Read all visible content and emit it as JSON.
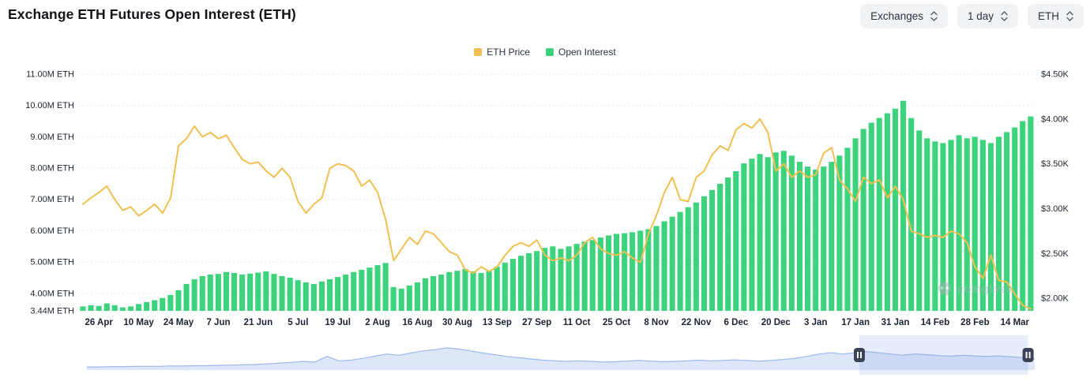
{
  "header": {
    "title": "Exchange ETH Futures Open Interest (ETH)"
  },
  "controls": [
    {
      "label": "Exchanges"
    },
    {
      "label": "1 day"
    },
    {
      "label": "ETH"
    }
  ],
  "legend": [
    {
      "label": "ETH Price",
      "color": "#F0C152"
    },
    {
      "label": "Open Interest",
      "color": "#3DD37C"
    }
  ],
  "watermark": {
    "text": "coinglass"
  },
  "chart_data": {
    "type": "bar",
    "title": "Exchange ETH Futures Open Interest (ETH)",
    "legend_position": "top-center",
    "grid": "horizontal-dotted",
    "x_tick_labels": [
      "26 Apr",
      "10 May",
      "24 May",
      "7 Jun",
      "21 Jun",
      "5 Jul",
      "19 Jul",
      "2 Aug",
      "16 Aug",
      "30 Aug",
      "13 Sep",
      "27 Sep",
      "11 Oct",
      "25 Oct",
      "8 Nov",
      "22 Nov",
      "6 Dec",
      "20 Dec",
      "3 Jan",
      "17 Jan",
      "31 Jan",
      "14 Feb",
      "28 Feb",
      "14 Mar"
    ],
    "left_axis": {
      "labels": [
        "11.00M ETH",
        "10.00M ETH",
        "9.00M ETH",
        "8.00M ETH",
        "7.00M ETH",
        "6.00M ETH",
        "5.00M ETH",
        "4.00M ETH",
        "3.44M ETH"
      ],
      "values": [
        11.0,
        10.0,
        9.0,
        8.0,
        7.0,
        6.0,
        5.0,
        4.0,
        3.44
      ],
      "range": [
        3.44,
        11.0
      ],
      "unit": "M ETH"
    },
    "right_axis": {
      "labels": [
        "$4.50K",
        "$4.00K",
        "$3.50K",
        "$3.00K",
        "$2.50K",
        "$2.00K"
      ],
      "values": [
        4.5,
        4.0,
        3.5,
        3.0,
        2.5,
        2.0
      ],
      "range": [
        1.86,
        4.5
      ],
      "unit": "$K"
    },
    "series": [
      {
        "name": "ETH Price",
        "type": "line",
        "axis": "right",
        "unit": "$K",
        "color": "#F0C152",
        "values": [
          3.05,
          3.12,
          3.18,
          3.25,
          3.1,
          2.98,
          3.02,
          2.92,
          2.98,
          3.05,
          2.95,
          3.12,
          3.7,
          3.78,
          3.92,
          3.8,
          3.85,
          3.78,
          3.82,
          3.68,
          3.55,
          3.5,
          3.52,
          3.42,
          3.35,
          3.45,
          3.35,
          3.08,
          2.95,
          3.05,
          3.12,
          3.45,
          3.5,
          3.48,
          3.42,
          3.25,
          3.32,
          3.18,
          2.88,
          2.42,
          2.55,
          2.68,
          2.6,
          2.75,
          2.72,
          2.62,
          2.52,
          2.48,
          2.32,
          2.28,
          2.35,
          2.3,
          2.35,
          2.48,
          2.58,
          2.62,
          2.58,
          2.65,
          2.48,
          2.42,
          2.45,
          2.42,
          2.48,
          2.62,
          2.68,
          2.55,
          2.5,
          2.48,
          2.52,
          2.45,
          2.4,
          2.72,
          2.92,
          3.18,
          3.35,
          3.1,
          3.08,
          3.35,
          3.42,
          3.6,
          3.7,
          3.65,
          3.88,
          3.95,
          3.9,
          4.0,
          3.85,
          3.42,
          3.5,
          3.35,
          3.42,
          3.35,
          3.38,
          3.62,
          3.68,
          3.32,
          3.22,
          3.08,
          3.35,
          3.28,
          3.32,
          3.12,
          3.25,
          3.1,
          2.75,
          2.72,
          2.68,
          2.7,
          2.68,
          2.75,
          2.72,
          2.62,
          2.35,
          2.22,
          2.48,
          2.2,
          2.18,
          2.05,
          1.92,
          1.88
        ]
      },
      {
        "name": "Open Interest",
        "type": "bar",
        "axis": "left",
        "unit": "M ETH",
        "color": "#3DD37C",
        "values": [
          3.58,
          3.62,
          3.6,
          3.68,
          3.62,
          3.55,
          3.58,
          3.66,
          3.72,
          3.78,
          3.85,
          3.95,
          4.1,
          4.3,
          4.45,
          4.55,
          4.6,
          4.62,
          4.68,
          4.65,
          4.6,
          4.63,
          4.66,
          4.7,
          4.62,
          4.55,
          4.5,
          4.42,
          4.35,
          4.3,
          4.38,
          4.45,
          4.52,
          4.6,
          4.68,
          4.75,
          4.82,
          4.9,
          4.97,
          4.2,
          4.15,
          4.25,
          4.35,
          4.48,
          4.55,
          4.6,
          4.68,
          4.72,
          4.78,
          4.7,
          4.65,
          4.72,
          4.85,
          4.98,
          5.1,
          5.2,
          5.28,
          5.35,
          5.45,
          5.5,
          5.42,
          5.5,
          5.58,
          5.65,
          5.7,
          5.78,
          5.85,
          5.9,
          5.92,
          5.95,
          6.0,
          6.05,
          6.15,
          6.3,
          6.45,
          6.6,
          6.75,
          6.9,
          7.1,
          7.3,
          7.5,
          7.7,
          7.9,
          8.15,
          8.3,
          8.45,
          8.35,
          8.5,
          8.55,
          8.4,
          8.2,
          8.05,
          7.95,
          8.05,
          8.2,
          8.4,
          8.65,
          8.95,
          9.25,
          9.45,
          9.6,
          9.75,
          9.9,
          10.15,
          9.6,
          9.2,
          8.95,
          8.85,
          8.8,
          8.9,
          9.05,
          8.95,
          9.0,
          8.9,
          8.8,
          9.0,
          9.15,
          9.3,
          9.5,
          9.65
        ]
      }
    ],
    "navigator": {
      "selection": [
        0.815,
        0.993
      ],
      "values": [
        0.1,
        0.1,
        0.11,
        0.11,
        0.12,
        0.12,
        0.12,
        0.13,
        0.13,
        0.14,
        0.14,
        0.15,
        0.16,
        0.17,
        0.18,
        0.2,
        0.22,
        0.25,
        0.28,
        0.26,
        0.44,
        0.3,
        0.32,
        0.38,
        0.45,
        0.52,
        0.48,
        0.55,
        0.62,
        0.66,
        0.72,
        0.68,
        0.62,
        0.55,
        0.5,
        0.44,
        0.4,
        0.36,
        0.32,
        0.3,
        0.28,
        0.3,
        0.28,
        0.26,
        0.27,
        0.29,
        0.31,
        0.29,
        0.27,
        0.28,
        0.3,
        0.32,
        0.3,
        0.31,
        0.33,
        0.31,
        0.29,
        0.31,
        0.34,
        0.38,
        0.44,
        0.52,
        0.56,
        0.52,
        0.56,
        0.6,
        0.56,
        0.52,
        0.48,
        0.52,
        0.5,
        0.47,
        0.45,
        0.48,
        0.46,
        0.44,
        0.46,
        0.43,
        0.4,
        0.36
      ]
    }
  }
}
